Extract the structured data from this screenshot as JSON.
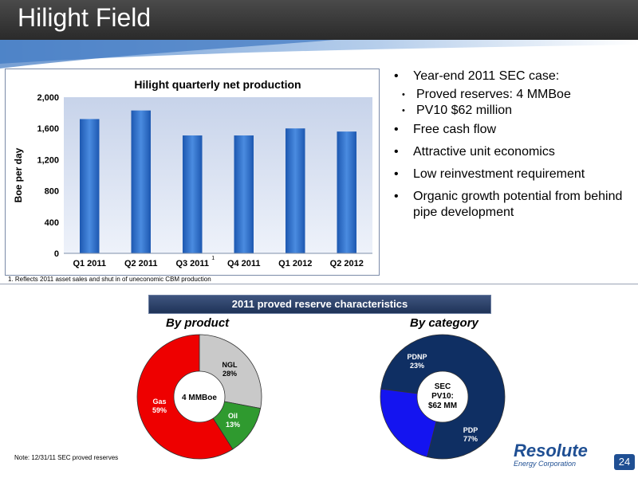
{
  "slide": {
    "title": "Hilight Field",
    "page_number": "24"
  },
  "chart_data": {
    "type": "bar",
    "title": "Hilight quarterly net production",
    "ylabel": "Boe per day",
    "xlabel": "",
    "categories": [
      "Q1 2011",
      "Q2 2011",
      "Q3 2011",
      "Q4 2011",
      "Q1 2012",
      "Q2 2012"
    ],
    "values": [
      1720,
      1830,
      1510,
      1510,
      1600,
      1560
    ],
    "ylim": [
      0,
      2000
    ],
    "yticks": [
      "0",
      "400",
      "800",
      "1,200",
      "1,600",
      "2,000"
    ],
    "category_marker": {
      "index": 2,
      "label": "1"
    },
    "grid": false,
    "bar_color": "#2a6fc9"
  },
  "footnote": "1.  Reflects 2011 asset sales and shut in of uneconomic CBM production",
  "bullets": [
    {
      "text": "Year-end 2011 SEC case:",
      "sub": [
        "Proved reserves:  4 MMBoe",
        "PV10 $62 million"
      ]
    },
    {
      "text": "Free cash flow",
      "sub": []
    },
    {
      "text": "Attractive unit economics",
      "sub": []
    },
    {
      "text": "Low reinvestment requirement",
      "sub": []
    },
    {
      "text": "Organic growth potential from behind pipe development",
      "sub": []
    }
  ],
  "reserves": {
    "banner": "2011 proved reserve characteristics",
    "by_product": {
      "heading": "By product",
      "center_label": "4 MMBoe",
      "slices": [
        {
          "name": "NGL",
          "pct": "28%",
          "value": 28,
          "color": "#c9c9c9"
        },
        {
          "name": "Oil",
          "pct": "13%",
          "value": 13,
          "color": "#2f9a2f"
        },
        {
          "name": "Gas",
          "pct": "59%",
          "value": 59,
          "color": "#ee0000"
        }
      ]
    },
    "by_category": {
      "heading": "By category",
      "center_lines": [
        "SEC",
        "PV10:",
        "$62 MM"
      ],
      "slices": [
        {
          "name": "PDP",
          "pct": "77%",
          "value": 77,
          "color": "#0f2f63"
        },
        {
          "name": "PDNP",
          "pct": "23%",
          "value": 23,
          "color": "#1414f0"
        }
      ]
    }
  },
  "note": "Note:  12/31/11 SEC proved reserves",
  "logo": {
    "main": "Resolute",
    "sub": "Energy Corporation"
  }
}
